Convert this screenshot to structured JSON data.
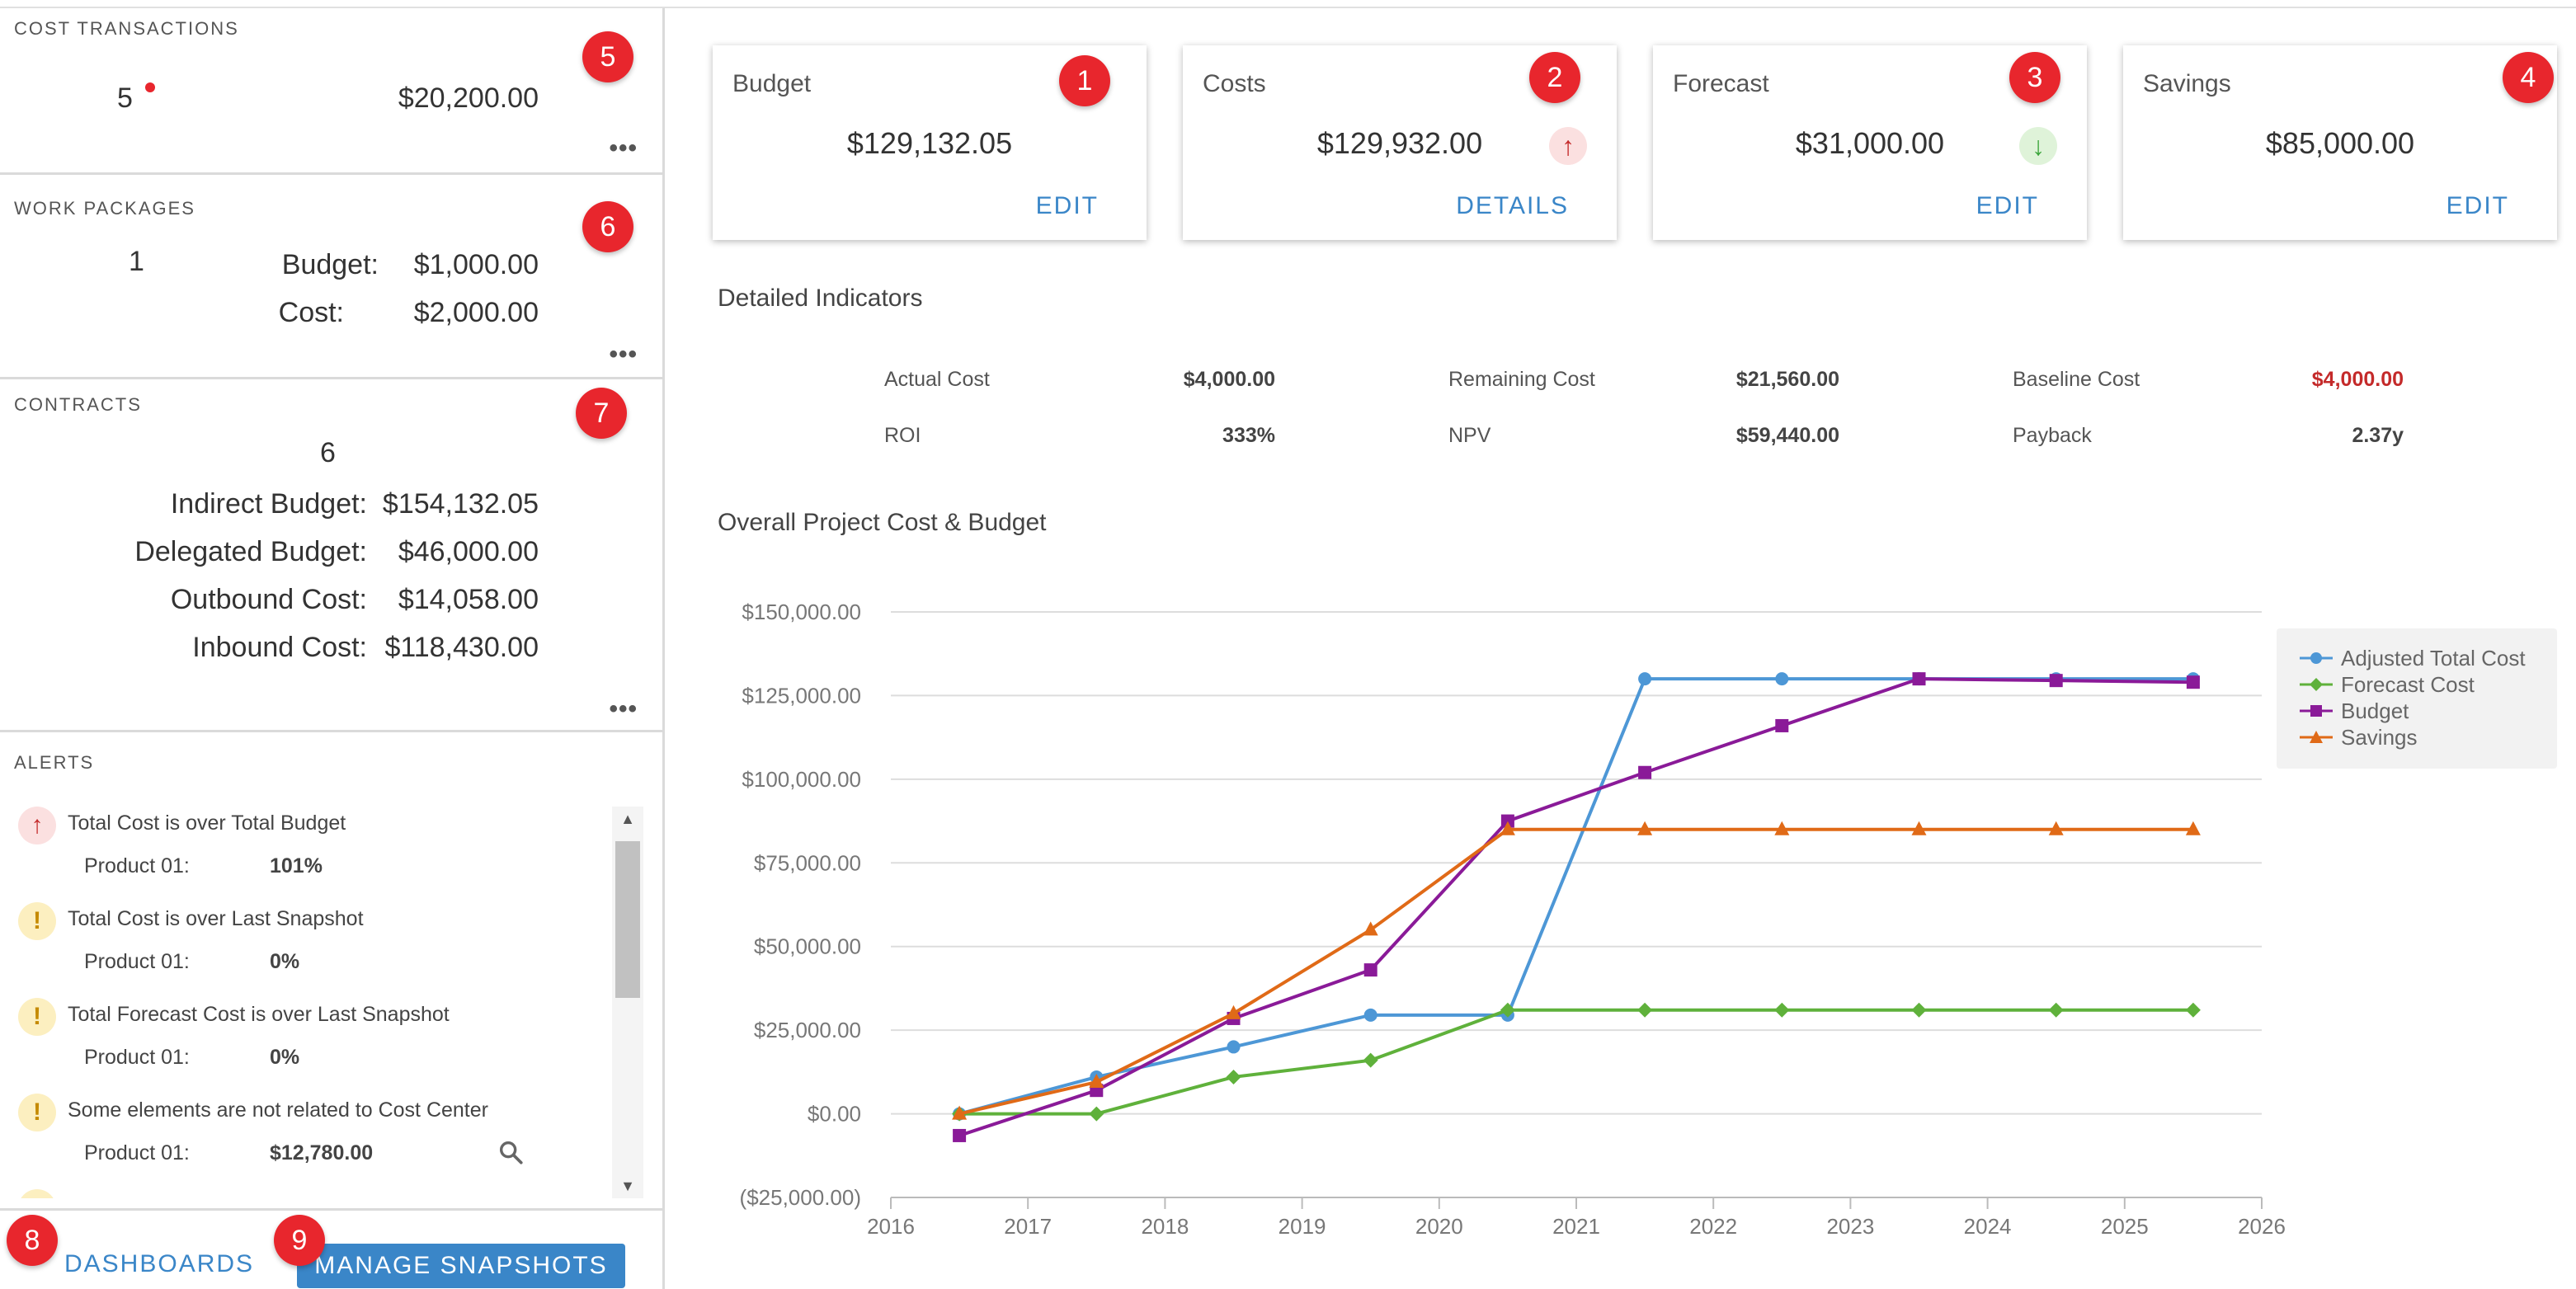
{
  "colors": {
    "accent": "#3a86c8",
    "badge": "#e8262d",
    "adjusted_total_cost": "#4d97d6",
    "forecast_cost": "#5fb13b",
    "budget": "#8a1a98",
    "savings": "#e06a17",
    "negative": "#c42a2a"
  },
  "left": {
    "cost_transactions": {
      "title": "COST TRANSACTIONS",
      "count": "5",
      "amount": "$20,200.00",
      "badge": "5",
      "more": "•••"
    },
    "work_packages": {
      "title": "WORK PACKAGES",
      "count": "1",
      "budget_label": "Budget:",
      "budget_value": "$1,000.00",
      "cost_label": "Cost:",
      "cost_value": "$2,000.00",
      "badge": "6",
      "more": "•••"
    },
    "contracts": {
      "title": "CONTRACTS",
      "count": "6",
      "badge": "7",
      "more": "•••",
      "rows": [
        {
          "label": "Indirect Budget:",
          "value": "$154,132.05"
        },
        {
          "label": "Delegated Budget:",
          "value": "$46,000.00"
        },
        {
          "label": "Outbound Cost:",
          "value": "$14,058.00"
        },
        {
          "label": "Inbound Cost:",
          "value": "$118,430.00"
        }
      ]
    },
    "alerts": {
      "title": "ALERTS",
      "items": [
        {
          "type": "up-arrow-icon",
          "title": "Total Cost is over Total Budget",
          "product": "Product 01:",
          "value": "101%"
        },
        {
          "type": "warning-icon",
          "title": "Total Cost is over Last Snapshot",
          "product": "Product 01:",
          "value": "0%"
        },
        {
          "type": "warning-icon",
          "title": "Total Forecast Cost is over Last Snapshot",
          "product": "Product 01:",
          "value": "0%"
        },
        {
          "type": "warning-icon",
          "title": "Some elements are not related to Cost Center",
          "product": "Product 01:",
          "value": "$12,780.00"
        }
      ]
    },
    "footer": {
      "dashboards_label": "DASHBOARDS",
      "dashboards_badge": "8",
      "snapshots_label": "MANAGE SNAPSHOTS",
      "snapshots_badge": "9"
    }
  },
  "cards": [
    {
      "title": "Budget",
      "value": "$129,132.05",
      "action": "EDIT",
      "badge": "1"
    },
    {
      "title": "Costs",
      "value": "$129,932.00",
      "action": "DETAILS",
      "badge": "2",
      "trend": "up"
    },
    {
      "title": "Forecast",
      "value": "$31,000.00",
      "action": "EDIT",
      "badge": "3",
      "trend": "down"
    },
    {
      "title": "Savings",
      "value": "$85,000.00",
      "action": "EDIT",
      "badge": "4"
    }
  ],
  "indicators": {
    "title": "Detailed Indicators",
    "items": [
      {
        "label": "Actual Cost",
        "value": "$4,000.00"
      },
      {
        "label": "Remaining Cost",
        "value": "$21,560.00"
      },
      {
        "label": "Baseline Cost",
        "value": "$4,000.00",
        "negative": true
      },
      {
        "label": "ROI",
        "value": "333%"
      },
      {
        "label": "NPV",
        "value": "$59,440.00"
      },
      {
        "label": "Payback",
        "value": "2.37y"
      }
    ]
  },
  "chart_title": "Overall Project Cost & Budget",
  "chart_data": {
    "type": "line",
    "title": "Overall Project Cost & Budget",
    "xlabel": "",
    "ylabel": "",
    "xlim": [
      2016,
      2026
    ],
    "ylim": [
      -25000,
      150000
    ],
    "x_ticks": [
      "2016",
      "2017",
      "2018",
      "2019",
      "2020",
      "2021",
      "2022",
      "2023",
      "2024",
      "2025",
      "2026"
    ],
    "y_ticks": [
      "($25,000.00)",
      "$0.00",
      "$25,000.00",
      "$50,000.00",
      "$75,000.00",
      "$100,000.00",
      "$125,000.00",
      "$150,000.00"
    ],
    "y_tick_values": [
      -25000,
      0,
      25000,
      50000,
      75000,
      100000,
      125000,
      150000
    ],
    "grid": true,
    "legend": "right",
    "series": [
      {
        "name": "Adjusted Total Cost",
        "marker": "circle",
        "color": "#4d97d6",
        "points": [
          [
            2016.5,
            0
          ],
          [
            2017.5,
            11000
          ],
          [
            2018.5,
            20000
          ],
          [
            2019.5,
            29500
          ],
          [
            2020.5,
            29500
          ],
          [
            2021.5,
            130000
          ],
          [
            2022.5,
            130000
          ],
          [
            2023.5,
            130000
          ],
          [
            2024.5,
            130000
          ],
          [
            2025.5,
            130000
          ]
        ]
      },
      {
        "name": "Forecast Cost",
        "marker": "diamond",
        "color": "#5fb13b",
        "points": [
          [
            2016.5,
            0
          ],
          [
            2017.5,
            0
          ],
          [
            2018.5,
            11000
          ],
          [
            2019.5,
            16000
          ],
          [
            2020.5,
            31000
          ],
          [
            2021.5,
            31000
          ],
          [
            2022.5,
            31000
          ],
          [
            2023.5,
            31000
          ],
          [
            2024.5,
            31000
          ],
          [
            2025.5,
            31000
          ]
        ]
      },
      {
        "name": "Budget",
        "marker": "square",
        "color": "#8a1a98",
        "points": [
          [
            2016.5,
            -6500
          ],
          [
            2017.5,
            7000
          ],
          [
            2018.5,
            28500
          ],
          [
            2019.5,
            43000
          ],
          [
            2020.5,
            87500
          ],
          [
            2021.5,
            102000
          ],
          [
            2022.5,
            116000
          ],
          [
            2023.5,
            130000
          ],
          [
            2024.5,
            129500
          ],
          [
            2025.5,
            129000
          ]
        ]
      },
      {
        "name": "Savings",
        "marker": "triangle",
        "color": "#e06a17",
        "points": [
          [
            2016.5,
            0
          ],
          [
            2017.5,
            9500
          ],
          [
            2018.5,
            30000
          ],
          [
            2019.5,
            55000
          ],
          [
            2020.5,
            85000
          ],
          [
            2021.5,
            85000
          ],
          [
            2022.5,
            85000
          ],
          [
            2023.5,
            85000
          ],
          [
            2024.5,
            85000
          ],
          [
            2025.5,
            85000
          ]
        ]
      }
    ]
  }
}
